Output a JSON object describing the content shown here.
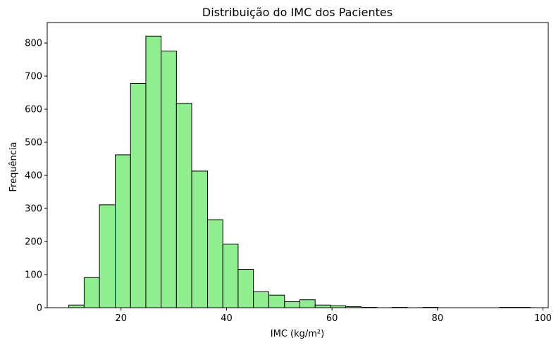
{
  "chart_data": {
    "type": "bar",
    "subtype": "histogram",
    "title": "Distribuição do IMC dos Pacientes",
    "xlabel": "IMC (kg/m²)",
    "ylabel": "Frequência",
    "xlim": [
      6,
      101
    ],
    "ylim": [
      0,
      862
    ],
    "xticks": [
      20,
      40,
      60,
      80,
      100
    ],
    "yticks": [
      0,
      100,
      200,
      300,
      400,
      500,
      600,
      700,
      800
    ],
    "bar_color": "#90ee90",
    "edge_color": "#000000",
    "grid": false,
    "bins": [
      {
        "x0": 10.1,
        "x1": 13.0,
        "value": 8
      },
      {
        "x0": 13.0,
        "x1": 15.9,
        "value": 91
      },
      {
        "x0": 15.9,
        "x1": 18.9,
        "value": 311
      },
      {
        "x0": 18.9,
        "x1": 21.8,
        "value": 462
      },
      {
        "x0": 21.8,
        "x1": 24.7,
        "value": 678
      },
      {
        "x0": 24.7,
        "x1": 27.6,
        "value": 821
      },
      {
        "x0": 27.6,
        "x1": 30.5,
        "value": 776
      },
      {
        "x0": 30.5,
        "x1": 33.4,
        "value": 618
      },
      {
        "x0": 33.4,
        "x1": 36.4,
        "value": 413
      },
      {
        "x0": 36.4,
        "x1": 39.3,
        "value": 266
      },
      {
        "x0": 39.3,
        "x1": 42.2,
        "value": 192
      },
      {
        "x0": 42.2,
        "x1": 45.1,
        "value": 116
      },
      {
        "x0": 45.1,
        "x1": 48.0,
        "value": 48
      },
      {
        "x0": 48.0,
        "x1": 51.0,
        "value": 38
      },
      {
        "x0": 51.0,
        "x1": 53.9,
        "value": 18
      },
      {
        "x0": 53.9,
        "x1": 56.8,
        "value": 24
      },
      {
        "x0": 56.8,
        "x1": 59.7,
        "value": 8
      },
      {
        "x0": 59.7,
        "x1": 62.6,
        "value": 6
      },
      {
        "x0": 62.6,
        "x1": 65.5,
        "value": 3
      },
      {
        "x0": 65.5,
        "x1": 68.5,
        "value": 1
      },
      {
        "x0": 68.5,
        "x1": 71.4,
        "value": 0
      },
      {
        "x0": 71.4,
        "x1": 74.3,
        "value": 1
      },
      {
        "x0": 74.3,
        "x1": 77.2,
        "value": 0
      },
      {
        "x0": 77.2,
        "x1": 80.1,
        "value": 1
      },
      {
        "x0": 80.1,
        "x1": 83.0,
        "value": 0
      },
      {
        "x0": 83.0,
        "x1": 86.0,
        "value": 0
      },
      {
        "x0": 86.0,
        "x1": 88.9,
        "value": 0
      },
      {
        "x0": 88.9,
        "x1": 91.8,
        "value": 0
      },
      {
        "x0": 91.8,
        "x1": 94.7,
        "value": 1
      },
      {
        "x0": 94.7,
        "x1": 97.6,
        "value": 1
      }
    ]
  }
}
